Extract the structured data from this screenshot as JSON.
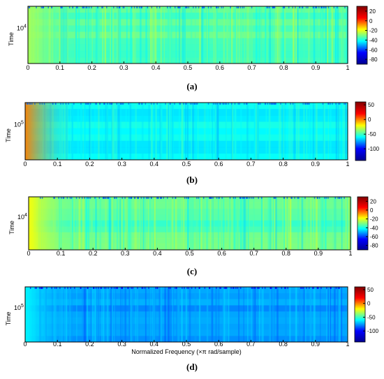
{
  "chart_data": [
    {
      "type": "heatmap",
      "panel_label": "(a)",
      "ylabel": "Time",
      "xlabel": "",
      "ytick_base": "10",
      "ytick_exp": "4",
      "x_ticks": [
        "0",
        "0.1",
        "0.2",
        "0.3",
        "0.4",
        "0.5",
        "0.6",
        "0.7",
        "0.8",
        "0.9",
        "1"
      ],
      "x_range": [
        0,
        1
      ],
      "colorbar_ticks": [
        "20",
        "0",
        "-20",
        "-40",
        "-60",
        "-80"
      ],
      "colorbar_range": [
        -90,
        30
      ],
      "typical_level_db": -35,
      "low_freq_level_db": -25,
      "grid": false
    },
    {
      "type": "heatmap",
      "panel_label": "(b)",
      "ylabel": "Time",
      "xlabel": "",
      "ytick_base": "10",
      "ytick_exp": "5",
      "x_ticks": [
        "0",
        "0.1",
        "0.2",
        "0.3",
        "0.4",
        "0.5",
        "0.6",
        "0.7",
        "0.8",
        "0.9",
        "1"
      ],
      "x_range": [
        0,
        1
      ],
      "colorbar_ticks": [
        "50",
        "0",
        "-50",
        "-100"
      ],
      "colorbar_range": [
        -140,
        60
      ],
      "typical_level_db": -65,
      "low_freq_level_db": 10,
      "grid": false
    },
    {
      "type": "heatmap",
      "panel_label": "(c)",
      "ylabel": "Time",
      "xlabel": "",
      "ytick_base": "10",
      "ytick_exp": "4",
      "x_ticks": [
        "0",
        "0.1",
        "0.2",
        "0.3",
        "0.4",
        "0.5",
        "0.6",
        "0.7",
        "0.8",
        "0.9",
        "1"
      ],
      "x_range": [
        0,
        1
      ],
      "colorbar_ticks": [
        "20",
        "0",
        "-20",
        "-40",
        "-60",
        "-80"
      ],
      "colorbar_range": [
        -90,
        30
      ],
      "typical_level_db": -35,
      "low_freq_level_db": -15,
      "grid": false
    },
    {
      "type": "heatmap",
      "panel_label": "(d)",
      "ylabel": "Time",
      "xlabel": "Normalized Frequency  (×π rad/sample)",
      "ytick_base": "10",
      "ytick_exp": "5",
      "x_ticks": [
        "0",
        "0.1",
        "0.2",
        "0.3",
        "0.4",
        "0.5",
        "0.6",
        "0.7",
        "0.8",
        "0.9",
        "1"
      ],
      "x_range": [
        0,
        1
      ],
      "colorbar_ticks": [
        "50",
        "0",
        "-50",
        "-100"
      ],
      "colorbar_range": [
        -140,
        60
      ],
      "typical_level_db": -85,
      "low_freq_level_db": -65,
      "grid": false
    }
  ],
  "colormap": [
    "#00008f",
    "#0000ff",
    "#00ffff",
    "#ffff00",
    "#ff0000",
    "#800000"
  ]
}
